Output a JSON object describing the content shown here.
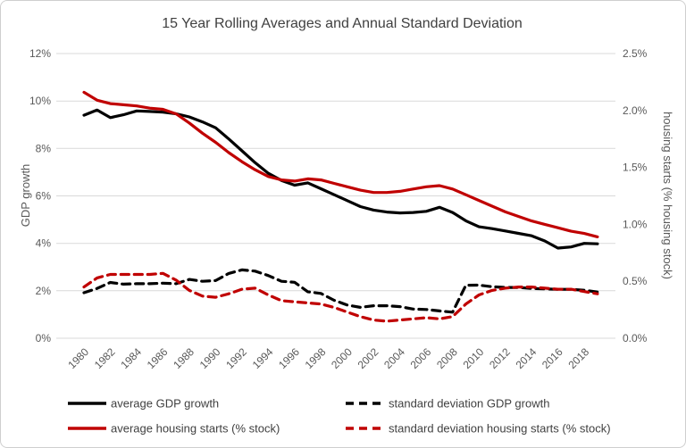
{
  "chart_data": {
    "type": "line",
    "title": "15 Year Rolling Averages and Annual Standard Deviation",
    "x": [
      1980,
      1981,
      1982,
      1983,
      1984,
      1985,
      1986,
      1987,
      1988,
      1989,
      1990,
      1991,
      1992,
      1993,
      1994,
      1995,
      1996,
      1997,
      1998,
      1999,
      2000,
      2001,
      2002,
      2003,
      2004,
      2005,
      2006,
      2007,
      2008,
      2009,
      2010,
      2011,
      2012,
      2013,
      2014,
      2015,
      2016,
      2017,
      2018,
      2019
    ],
    "x_ticks": [
      1980,
      1982,
      1984,
      1986,
      1988,
      1990,
      1992,
      1994,
      1996,
      1998,
      2000,
      2002,
      2004,
      2006,
      2008,
      2010,
      2012,
      2014,
      2016,
      2018
    ],
    "left_axis": {
      "label": "GDP growth",
      "ticks": [
        "0%",
        "2%",
        "4%",
        "6%",
        "8%",
        "10%",
        "12%"
      ],
      "range": [
        0,
        12
      ]
    },
    "right_axis": {
      "label": "housing starts (% housing stock)",
      "ticks": [
        "0.0%",
        "0.5%",
        "1.0%",
        "1.5%",
        "2.0%",
        "2.5%"
      ],
      "range": [
        0,
        2.5
      ]
    },
    "grid": "horizontal",
    "legend_position": "bottom-two-columns",
    "series": [
      {
        "id": "avg-gdp",
        "name": "average GDP growth",
        "axis": "left",
        "color": "#000000",
        "dash": "solid",
        "values": [
          9.4,
          9.62,
          9.3,
          9.42,
          9.58,
          9.56,
          9.53,
          9.46,
          9.33,
          9.12,
          8.87,
          8.4,
          7.9,
          7.4,
          6.95,
          6.65,
          6.45,
          6.55,
          6.3,
          6.05,
          5.8,
          5.55,
          5.4,
          5.32,
          5.28,
          5.3,
          5.35,
          5.52,
          5.3,
          4.95,
          4.7,
          4.62,
          4.52,
          4.42,
          4.32,
          4.1,
          3.8,
          3.85,
          4.0,
          3.98
        ]
      },
      {
        "id": "avg-housing",
        "name": "average housing starts (% stock)",
        "axis": "right",
        "color": "#c00000",
        "dash": "solid",
        "values": [
          2.16,
          2.09,
          2.06,
          2.05,
          2.04,
          2.02,
          2.01,
          1.97,
          1.89,
          1.8,
          1.72,
          1.63,
          1.55,
          1.48,
          1.42,
          1.39,
          1.38,
          1.4,
          1.39,
          1.36,
          1.33,
          1.3,
          1.28,
          1.28,
          1.29,
          1.31,
          1.33,
          1.34,
          1.31,
          1.26,
          1.21,
          1.16,
          1.11,
          1.07,
          1.03,
          1.0,
          0.97,
          0.94,
          0.92,
          0.89
        ]
      },
      {
        "id": "sd-gdp",
        "name": "standard deviation GDP growth",
        "axis": "left",
        "color": "#000000",
        "dash": "dashed",
        "values": [
          1.92,
          2.1,
          2.35,
          2.28,
          2.3,
          2.3,
          2.32,
          2.3,
          2.48,
          2.4,
          2.43,
          2.73,
          2.88,
          2.83,
          2.64,
          2.4,
          2.36,
          1.96,
          1.89,
          1.6,
          1.4,
          1.3,
          1.37,
          1.37,
          1.33,
          1.23,
          1.21,
          1.15,
          1.1,
          2.23,
          2.24,
          2.17,
          2.14,
          2.14,
          2.1,
          2.08,
          2.06,
          2.06,
          2.02,
          1.95
        ]
      },
      {
        "id": "sd-housing",
        "name": "standard deviation housing starts (% stock)",
        "axis": "right",
        "color": "#c00000",
        "dash": "dashed",
        "values": [
          0.45,
          0.53,
          0.56,
          0.56,
          0.56,
          0.56,
          0.57,
          0.51,
          0.42,
          0.37,
          0.36,
          0.39,
          0.43,
          0.44,
          0.38,
          0.33,
          0.32,
          0.31,
          0.3,
          0.27,
          0.23,
          0.19,
          0.16,
          0.15,
          0.16,
          0.17,
          0.18,
          0.17,
          0.19,
          0.3,
          0.38,
          0.42,
          0.44,
          0.45,
          0.45,
          0.44,
          0.43,
          0.43,
          0.41,
          0.39
        ]
      }
    ],
    "colors": {
      "grid": "#d9d9d9",
      "title_text": "#404040",
      "axis_text": "#595959",
      "black_series": "#000000",
      "red_series": "#c00000"
    }
  }
}
